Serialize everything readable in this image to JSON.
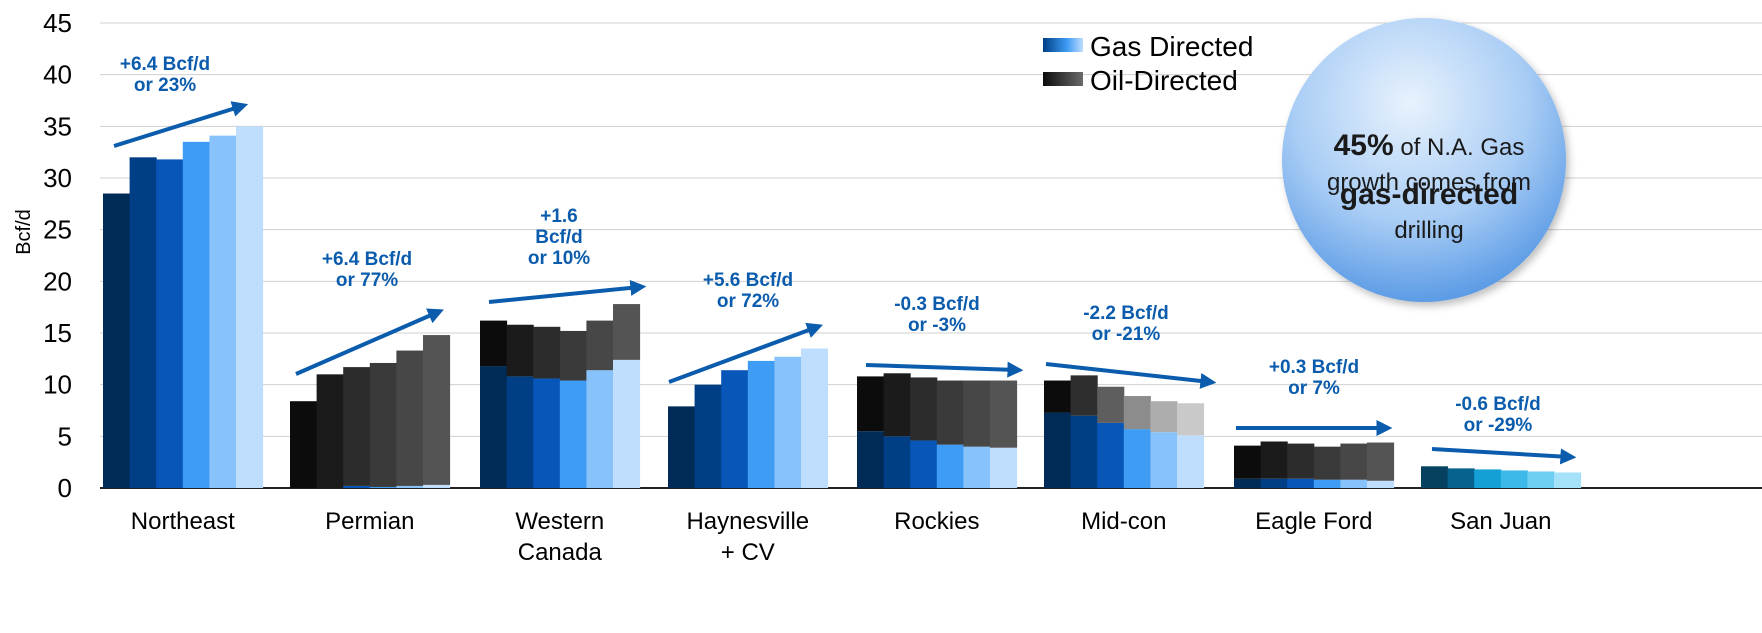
{
  "chart_data": {
    "type": "bar",
    "ylabel": "Bcf/d",
    "ylim": [
      0,
      45
    ],
    "yticks": [
      0,
      5,
      10,
      15,
      20,
      25,
      30,
      35,
      40,
      45
    ],
    "grid": true,
    "stacked": true,
    "legend": {
      "placement": "top-right",
      "entries": [
        {
          "name": "Gas Directed",
          "color": "#1e6fd0"
        },
        {
          "name": "Oil-Directed",
          "color": "#333333"
        }
      ]
    },
    "series": [
      {
        "name": "Gas Directed"
      },
      {
        "name": "Oil-Directed"
      }
    ],
    "categories": [
      {
        "label": [
          "Northeast"
        ],
        "gas": [
          28.5,
          32.0,
          31.8,
          33.5,
          34.1,
          35.0
        ],
        "oil": [
          0,
          0,
          0,
          0,
          0,
          0
        ],
        "annotation": [
          "+6.4 Bcf/d",
          "or 23%"
        ]
      },
      {
        "label": [
          "Permian"
        ],
        "gas": [
          0.0,
          0.0,
          0.2,
          0.1,
          0.2,
          0.3
        ],
        "oil": [
          8.4,
          11.0,
          11.5,
          12.0,
          13.1,
          14.5
        ],
        "annotation": [
          "+6.4 Bcf/d",
          "or 77%"
        ]
      },
      {
        "label": [
          "Western",
          "Canada"
        ],
        "gas": [
          11.8,
          10.8,
          10.6,
          10.4,
          11.4,
          12.4
        ],
        "oil": [
          4.4,
          5.0,
          5.0,
          4.8,
          4.8,
          5.4
        ],
        "annotation": [
          "+1.6",
          "Bcf/d",
          "or 10%"
        ]
      },
      {
        "label": [
          "Haynesville",
          "+ CV"
        ],
        "gas": [
          7.9,
          10.0,
          11.4,
          12.3,
          12.7,
          13.5
        ],
        "oil": [
          0,
          0,
          0,
          0,
          0,
          0
        ],
        "annotation": [
          "+5.6 Bcf/d",
          "or 72%"
        ]
      },
      {
        "label": [
          "Rockies"
        ],
        "gas": [
          5.5,
          5.0,
          4.6,
          4.2,
          4.0,
          3.9
        ],
        "oil": [
          5.3,
          6.1,
          6.1,
          6.2,
          6.4,
          6.5
        ],
        "annotation": [
          "-0.3 Bcf/d",
          "or -3%"
        ]
      },
      {
        "label": [
          "Mid-con"
        ],
        "gas": [
          7.3,
          7.0,
          6.3,
          5.7,
          5.4,
          5.1
        ],
        "oil": [
          3.1,
          3.9,
          3.5,
          3.2,
          3.0,
          3.1
        ],
        "annotation": [
          "-2.2 Bcf/d",
          "or -21%"
        ]
      },
      {
        "label": [
          "Eagle Ford"
        ],
        "gas": [
          0.9,
          0.9,
          0.9,
          0.8,
          0.8,
          0.7
        ],
        "oil": [
          3.2,
          3.6,
          3.4,
          3.2,
          3.5,
          3.7
        ],
        "annotation": [
          "+0.3 Bcf/d",
          "or 7%"
        ]
      },
      {
        "label": [
          "San Juan"
        ],
        "gas": [
          2.1,
          1.9,
          1.8,
          1.7,
          1.6,
          1.5
        ],
        "oil": [
          0.0,
          0.0,
          0.0,
          0.0,
          0.0,
          0.0
        ],
        "annotation": [
          "-0.6 Bcf/d",
          "or -29%"
        ]
      }
    ]
  },
  "callout": {
    "highlight": "45%",
    "line1_rest": " of N.A. Gas",
    "line2": "growth comes from",
    "line3": "gas-directed",
    "line4": "drilling"
  },
  "colors": {
    "gas_ramp": [
      "#002b57",
      "#003e86",
      "#0756b8",
      "#3e9cf4",
      "#88c2fb",
      "#bfddfd"
    ],
    "oil_ramp": [
      "#0c0c0c",
      "#1b1b1b",
      "#2c2c2c",
      "#3a3a3a",
      "#474747",
      "#545454"
    ],
    "midcon_oil_ramp": [
      "#0c0c0c",
      "#2e2e2e",
      "#5e5e5e",
      "#8c8c8c",
      "#adadad",
      "#c9c9c9"
    ],
    "sanjuan_ramp": [
      "#06415f",
      "#07628e",
      "#14a0d4",
      "#3cb9e8",
      "#6fcff2",
      "#a3e2f8"
    ],
    "annotation": "#0b5cad",
    "grid": "#d0d0d0"
  }
}
